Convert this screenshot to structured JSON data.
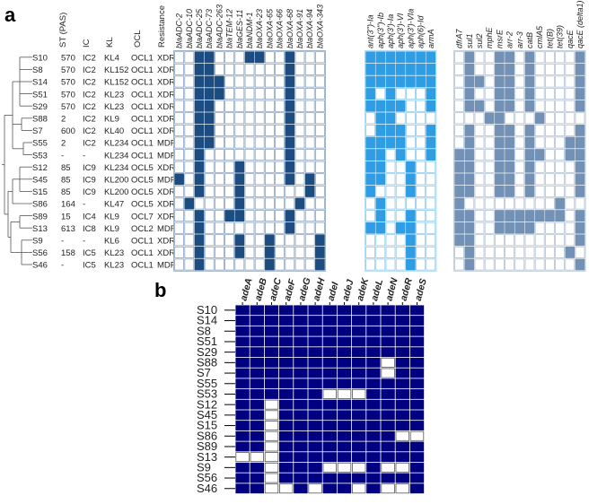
{
  "panel_a": {
    "label": "a",
    "meta_headers": [
      "ST (PAS)",
      "IC",
      "KL",
      "OCL",
      "Resistance"
    ],
    "rows": [
      {
        "strain": "S10",
        "st": "570",
        "ic": "IC2",
        "kl": "KL4",
        "ocl": "OCL1",
        "res": "XDR"
      },
      {
        "strain": "S8",
        "st": "570",
        "ic": "IC2",
        "kl": "KL152",
        "ocl": "OCL1",
        "res": "XDR"
      },
      {
        "strain": "S14",
        "st": "570",
        "ic": "IC2",
        "kl": "KL152",
        "ocl": "OCL1",
        "res": "XDR"
      },
      {
        "strain": "S51",
        "st": "570",
        "ic": "IC2",
        "kl": "KL23",
        "ocl": "OCL1",
        "res": "XDR"
      },
      {
        "strain": "S29",
        "st": "570",
        "ic": "IC2",
        "kl": "KL23",
        "ocl": "OCL1",
        "res": "XDR"
      },
      {
        "strain": "S88",
        "st": "2",
        "ic": "IC2",
        "kl": "KL9",
        "ocl": "OCL1",
        "res": "XDR"
      },
      {
        "strain": "S7",
        "st": "600",
        "ic": "IC2",
        "kl": "KL40",
        "ocl": "OCL1",
        "res": "XDR"
      },
      {
        "strain": "S55",
        "st": "2",
        "ic": "IC2",
        "kl": "KL234",
        "ocl": "OCL1",
        "res": "MDR"
      },
      {
        "strain": "S53",
        "st": "-",
        "ic": "-",
        "kl": "KL234",
        "ocl": "OCL1",
        "res": "MDR"
      },
      {
        "strain": "S12",
        "st": "85",
        "ic": "IC9",
        "kl": "KL234",
        "ocl": "OCL5",
        "res": "XDR"
      },
      {
        "strain": "S45",
        "st": "85",
        "ic": "IC9",
        "kl": "KL200",
        "ocl": "OCL5",
        "res": "MDR"
      },
      {
        "strain": "S15",
        "st": "85",
        "ic": "IC9",
        "kl": "KL200",
        "ocl": "OCL5",
        "res": "XDR"
      },
      {
        "strain": "S86",
        "st": "164",
        "ic": "-",
        "kl": "KL47",
        "ocl": "OCL5",
        "res": "XDR"
      },
      {
        "strain": "S89",
        "st": "15",
        "ic": "IC4",
        "kl": "KL9",
        "ocl": "OCL7",
        "res": "XDR"
      },
      {
        "strain": "S13",
        "st": "613",
        "ic": "IC8",
        "kl": "KL9",
        "ocl": "OCL2",
        "res": "MDR"
      },
      {
        "strain": "S9",
        "st": "-",
        "ic": "-",
        "kl": "KL6",
        "ocl": "OCL1",
        "res": "XDR"
      },
      {
        "strain": "S56",
        "st": "158",
        "ic": "IC5",
        "kl": "KL23",
        "ocl": "OCL1",
        "res": "XDR"
      },
      {
        "strain": "S46",
        "st": "-",
        "ic": "IC5",
        "kl": "KL23",
        "ocl": "OCL1",
        "res": "MDR"
      }
    ],
    "groups": [
      {
        "color": "#1c4c80",
        "genes": [
          "blaADC-2",
          "blaADC-10",
          "blaADC-25",
          "blaADC-73",
          "blaADC-263",
          "blaTEM-12",
          "blaGES-11",
          "blaNDM-1",
          "blaOXA-23",
          "blaOXA-65",
          "blaOXA-66",
          "blaOXA-68",
          "blaOXA-91",
          "blaOXA-94",
          "blaOXA-343"
        ],
        "matrix": [
          "001100011001000",
          "001100000001000",
          "001110000001000",
          "001110000001000",
          "001100000001000",
          "001100000001000",
          "001100000001000",
          "001100000001000",
          "001000000001000",
          "001000100001000",
          "101000100001010",
          "001000100000010",
          "010000100000100",
          "001001100001000",
          "001000000001000",
          "001000100100001",
          "001000100100001",
          "001000000100001"
        ]
      },
      {
        "color": "#2f9de3",
        "genes": [
          "ant(3'')-Ia",
          "aph(3'')-Ib",
          "aph(3')-Ia",
          "aph(3')-VI",
          "aph(3')-VIa",
          "aph(6)-Id",
          "armA"
        ],
        "matrix": [
          "1111111",
          "1111111",
          "1111111",
          "1010001",
          "1111001",
          "0110000",
          "0111001",
          "1111001",
          "1101001",
          "1100100",
          "1100100",
          "1000100",
          "0100000",
          "0100100",
          "1101100",
          "0000100",
          "0000100",
          "0000100"
        ]
      },
      {
        "color": "#7391b4",
        "genes": [
          "dfrA7",
          "sul1",
          "sul2",
          "mphE",
          "msrE",
          "arr-2",
          "arr-3",
          "catB",
          "cmlA5",
          "tet(B)",
          "tet(39)",
          "qacE",
          "qacE (delta1)"
        ],
        "matrix": [
          "0100110100001",
          "0100110100001",
          "0110110100001",
          "0100110100001",
          "0110110100001",
          "0001100010000",
          "0100110100001",
          "0100110100011",
          "1100110110011",
          "1100110100001",
          "1100110100001",
          "1100110100001",
          "1000000000100",
          "1100111111101",
          "1100111100001",
          "1100000000001",
          "0100000000010",
          "0100000000001"
        ]
      }
    ]
  },
  "panel_b": {
    "label": "b",
    "color": "#000080",
    "genes": [
      "adeA",
      "adeB",
      "adeC",
      "adeF",
      "adeG",
      "adeH",
      "adeI",
      "adeJ",
      "adeK",
      "adeL",
      "adeN",
      "adeR",
      "adeS"
    ],
    "strains": [
      "S10",
      "S14",
      "S8",
      "S51",
      "S29",
      "S88",
      "S7",
      "S55",
      "S53",
      "S12",
      "S45",
      "S15",
      "S86",
      "S89",
      "S13",
      "S9",
      "S56",
      "S46"
    ],
    "matrix": [
      "1111111111111",
      "1111111111111",
      "1111111111111",
      "1111111111111",
      "1111111111111",
      "1111111111011",
      "1111111111011",
      "1111111111111",
      "1111110001111",
      "1101111111111",
      "1101111111111",
      "1101111111111",
      "1101111111100",
      "1101111111111",
      "0001111111111",
      "1101110001001",
      "1101111111111",
      "1100101101001"
    ]
  }
}
